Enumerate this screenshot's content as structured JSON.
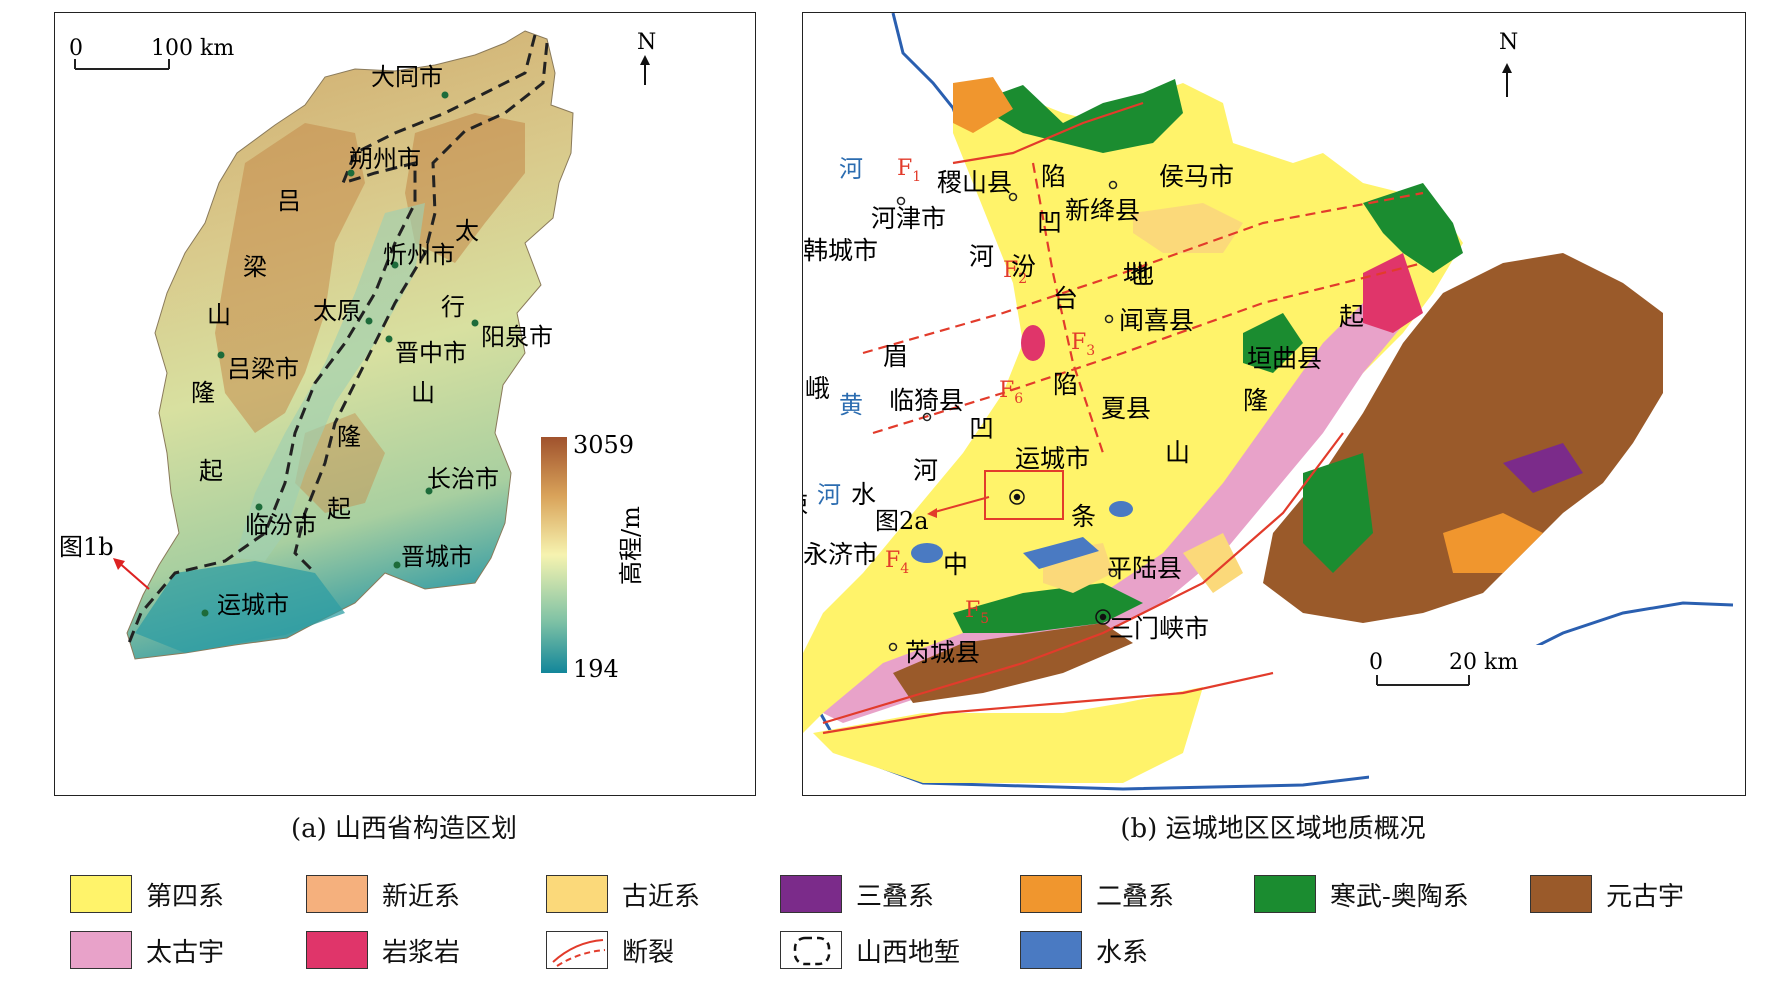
{
  "panel_a": {
    "caption": "(a) 山西省构造区划",
    "scale_zero": "0",
    "scale_label": "100 km",
    "north": "N",
    "colorbar_max": "3059",
    "colorbar_min": "194",
    "colorbar_title": "高程/m",
    "colorbar_colors": [
      "#a0522d",
      "#d9a35a",
      "#f6f3b0",
      "#7fc2a5",
      "#12869a"
    ],
    "arrow_label": "图1b",
    "cities": [
      "大同市",
      "朔州市",
      "忻州市",
      "太原",
      "阳泉市",
      "晋中市",
      "吕梁市",
      "长治市",
      "临汾市",
      "晋城市",
      "运城市"
    ],
    "region_chars_luliang": [
      "吕",
      "梁",
      "山",
      "隆",
      "起"
    ],
    "region_chars_taihang": [
      "太",
      "行",
      "山",
      "隆",
      "起"
    ]
  },
  "panel_b": {
    "caption": "(b) 运城地区区域地质概况",
    "scale_zero": "0",
    "scale_label": "20 km",
    "north": "N",
    "river_chars": [
      "黄",
      "河",
      "黄",
      "河"
    ],
    "faults": [
      "F1",
      "F2",
      "F3",
      "F4",
      "F5",
      "F6"
    ],
    "fault_subs": [
      "1",
      "2",
      "3",
      "4",
      "5",
      "6"
    ],
    "places": [
      "稷山县",
      "新绛县",
      "侯马市",
      "河津市",
      "韩城市",
      "闻喜县",
      "垣曲县",
      "临猗县",
      "夏县",
      "运城市",
      "永济市",
      "平陆县",
      "芮城县",
      "三门峡市"
    ],
    "arrow_label": "图2a",
    "fenhe_chars": [
      "汾",
      "河",
      "陷",
      "凹",
      "地"
    ],
    "emei_chars": [
      "峨",
      "眉",
      "台",
      "地"
    ],
    "sushui_chars": [
      "涑",
      "水",
      "河",
      "陷",
      "凹"
    ],
    "zhongtiao_chars": [
      "中",
      "条",
      "山",
      "隆",
      "起"
    ],
    "colors": {
      "quaternary": "#fff36a",
      "neogene": "#f5b07d",
      "paleogene": "#fbd97a",
      "triassic": "#7b2b8a",
      "permian": "#f0962e",
      "cambro_ordovician": "#1b8c30",
      "proterozoic": "#9a5a2a",
      "archean": "#e8a2c9",
      "magmatic": "#e0356a",
      "water": "#4a7ac2",
      "fault": "#e23b2b",
      "river_label": "#2b6cb0"
    }
  },
  "legend": [
    {
      "label": "第四系",
      "color": "#fff36a"
    },
    {
      "label": "新近系",
      "color": "#f5b07d"
    },
    {
      "label": "古近系",
      "color": "#fbd97a"
    },
    {
      "label": "三叠系",
      "color": "#7b2b8a"
    },
    {
      "label": "二叠系",
      "color": "#f0962e"
    },
    {
      "label": "寒武-奥陶系",
      "color": "#1b8c30"
    },
    {
      "label": "元古宇",
      "color": "#9a5a2a"
    },
    {
      "label": "太古宇",
      "color": "#e8a2c9"
    },
    {
      "label": "岩浆岩",
      "color": "#e0356a"
    },
    {
      "label": "断裂",
      "color": "#ffffff",
      "icon": "fault-line-icon"
    },
    {
      "label": "山西地堑",
      "color": "#ffffff",
      "icon": "graben-boundary-icon"
    },
    {
      "label": "水系",
      "color": "#4a7ac2"
    }
  ]
}
